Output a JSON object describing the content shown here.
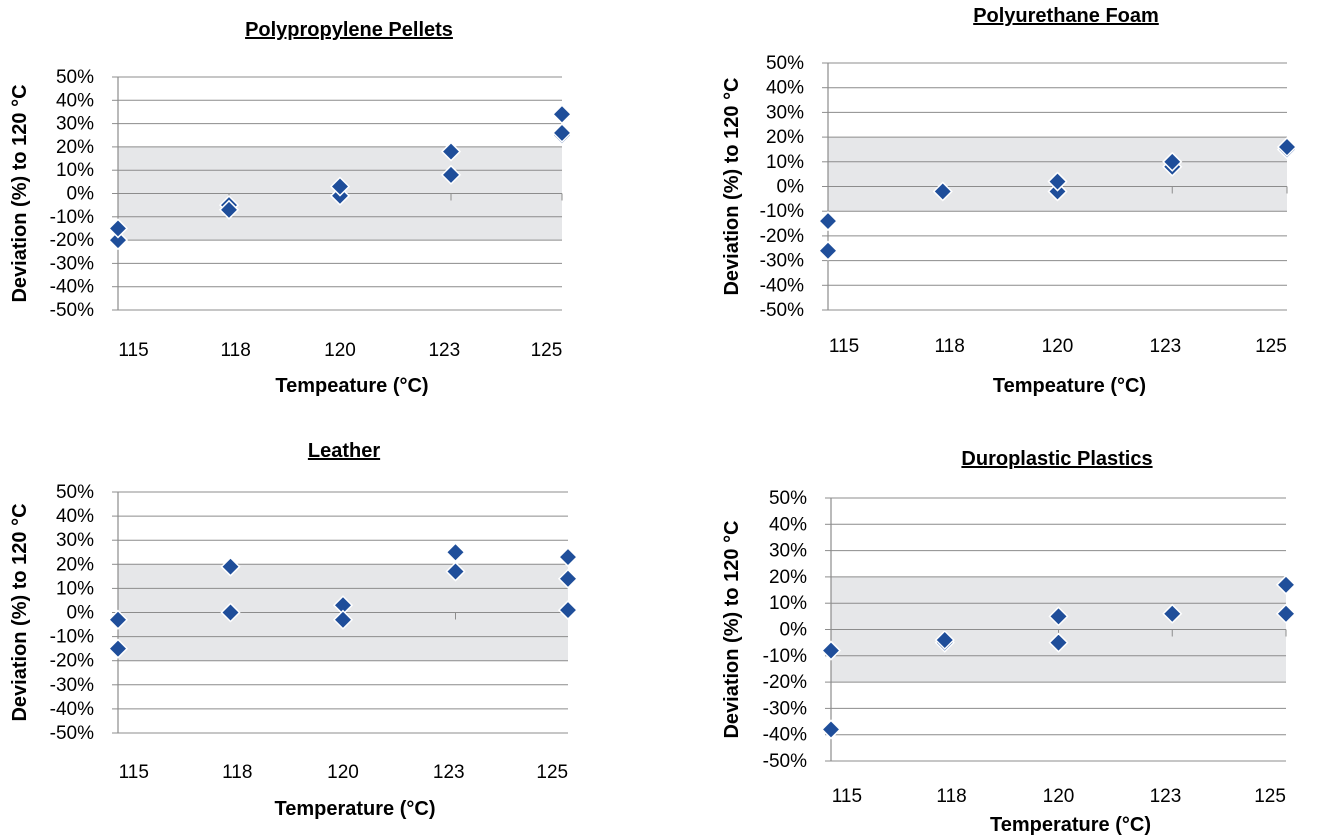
{
  "chart_data": [
    {
      "type": "scatter",
      "title": "Polypropylene Pellets",
      "xlabel": "Tempeature (°C)",
      "ylabel": "Deviation (%) to 120 °C",
      "x_ticks": [
        "115",
        "118",
        "120",
        "123",
        "125"
      ],
      "y_ticks": [
        "50%",
        "40%",
        "30%",
        "20%",
        "10%",
        "0%",
        "-10%",
        "-20%",
        "-30%",
        "-40%",
        "-50%"
      ],
      "xlim": [
        115,
        125
      ],
      "ylim": [
        -0.5,
        0.5
      ],
      "tolerance_band": [
        -0.2,
        0.2
      ],
      "grid": true,
      "marker": "diamond",
      "marker_color": "#1F4E9A",
      "band_color": "#E6E7E9",
      "points": [
        {
          "x": 115,
          "y": -0.2
        },
        {
          "x": 115,
          "y": -0.15
        },
        {
          "x": 117.5,
          "y": -0.05
        },
        {
          "x": 117.5,
          "y": -0.07
        },
        {
          "x": 120,
          "y": -0.01
        },
        {
          "x": 120,
          "y": 0.03
        },
        {
          "x": 122.5,
          "y": 0.08
        },
        {
          "x": 122.5,
          "y": 0.18
        },
        {
          "x": 125,
          "y": 0.25
        },
        {
          "x": 125,
          "y": 0.26
        },
        {
          "x": 125,
          "y": 0.34
        }
      ]
    },
    {
      "type": "scatter",
      "title": "Polyurethane Foam",
      "xlabel": "Tempeature (°C)",
      "ylabel": "Deviation (%) to 120 °C",
      "x_ticks": [
        "115",
        "118",
        "120",
        "123",
        "125"
      ],
      "y_ticks": [
        "50%",
        "40%",
        "30%",
        "20%",
        "10%",
        "0%",
        "-10%",
        "-20%",
        "-30%",
        "-40%",
        "-50%"
      ],
      "xlim": [
        115,
        125
      ],
      "ylim": [
        -0.5,
        0.5
      ],
      "tolerance_band": [
        -0.1,
        0.2
      ],
      "grid": true,
      "marker": "diamond",
      "marker_color": "#1F4E9A",
      "band_color": "#E6E7E9",
      "points": [
        {
          "x": 115,
          "y": -0.14
        },
        {
          "x": 115,
          "y": -0.26
        },
        {
          "x": 117.5,
          "y": -0.02
        },
        {
          "x": 120,
          "y": -0.02
        },
        {
          "x": 120,
          "y": 0.02
        },
        {
          "x": 122.5,
          "y": 0.08
        },
        {
          "x": 122.5,
          "y": 0.1
        },
        {
          "x": 125,
          "y": 0.15
        },
        {
          "x": 125,
          "y": 0.16
        }
      ]
    },
    {
      "type": "scatter",
      "title": "Leather",
      "xlabel": "Temperature (°C)",
      "ylabel": "Deviation (%) to 120 °C",
      "x_ticks": [
        "115",
        "118",
        "120",
        "123",
        "125"
      ],
      "y_ticks": [
        "50%",
        "40%",
        "30%",
        "20%",
        "10%",
        "0%",
        "-10%",
        "-20%",
        "-30%",
        "-40%",
        "-50%"
      ],
      "xlim": [
        115,
        125
      ],
      "ylim": [
        -0.5,
        0.5
      ],
      "tolerance_band": [
        -0.2,
        0.2
      ],
      "grid": true,
      "marker": "diamond",
      "marker_color": "#1F4E9A",
      "band_color": "#E6E7E9",
      "points": [
        {
          "x": 115,
          "y": -0.03
        },
        {
          "x": 115,
          "y": -0.15
        },
        {
          "x": 117.5,
          "y": 0.19
        },
        {
          "x": 117.5,
          "y": 0.0
        },
        {
          "x": 120,
          "y": 0.03
        },
        {
          "x": 120,
          "y": -0.03
        },
        {
          "x": 122.5,
          "y": 0.25
        },
        {
          "x": 122.5,
          "y": 0.17
        },
        {
          "x": 125,
          "y": 0.23
        },
        {
          "x": 125,
          "y": 0.14
        },
        {
          "x": 125,
          "y": 0.01
        }
      ]
    },
    {
      "type": "scatter",
      "title": "Duroplastic Plastics",
      "xlabel": "Temperature (°C)",
      "ylabel": "Deviation (%) to 120 °C",
      "x_ticks": [
        "115",
        "118",
        "120",
        "123",
        "125"
      ],
      "y_ticks": [
        "50%",
        "40%",
        "30%",
        "20%",
        "10%",
        "0%",
        "-10%",
        "-20%",
        "-30%",
        "-40%",
        "-50%"
      ],
      "xlim": [
        115,
        125
      ],
      "ylim": [
        -0.5,
        0.5
      ],
      "tolerance_band": [
        -0.2,
        0.2
      ],
      "grid": true,
      "marker": "diamond",
      "marker_color": "#1F4E9A",
      "band_color": "#E6E7E9",
      "points": [
        {
          "x": 115,
          "y": -0.08
        },
        {
          "x": 115,
          "y": -0.38
        },
        {
          "x": 117.5,
          "y": -0.05
        },
        {
          "x": 117.5,
          "y": -0.04
        },
        {
          "x": 120,
          "y": 0.05
        },
        {
          "x": 120,
          "y": -0.05
        },
        {
          "x": 122.5,
          "y": 0.06
        },
        {
          "x": 125,
          "y": 0.17
        },
        {
          "x": 125,
          "y": 0.06
        }
      ]
    }
  ]
}
